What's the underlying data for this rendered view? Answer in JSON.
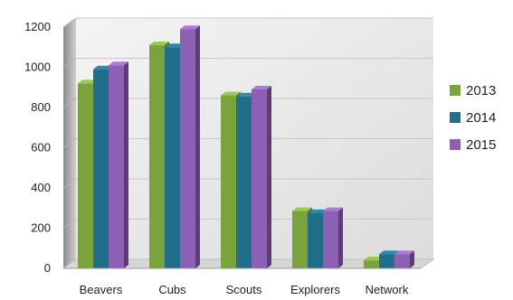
{
  "chart_data": {
    "type": "bar",
    "title": "",
    "xlabel": "",
    "ylabel": "",
    "categories": [
      "Beavers",
      "Cubs",
      "Scouts",
      "Explorers",
      "Network"
    ],
    "series": [
      {
        "name": "2013",
        "values": [
          920,
          1110,
          860,
          285,
          40
        ],
        "color": "#7aa33a"
      },
      {
        "name": "2014",
        "values": [
          990,
          1100,
          855,
          275,
          70
        ],
        "color": "#1f6f8b"
      },
      {
        "name": "2015",
        "values": [
          1010,
          1190,
          890,
          285,
          70
        ],
        "color": "#8d5fb5"
      }
    ],
    "ylim": [
      0,
      1200
    ],
    "yticks": [
      0,
      200,
      400,
      600,
      800,
      1000,
      1200
    ],
    "grid": true,
    "style": "3d-clustered-column",
    "legend_position": "right"
  }
}
